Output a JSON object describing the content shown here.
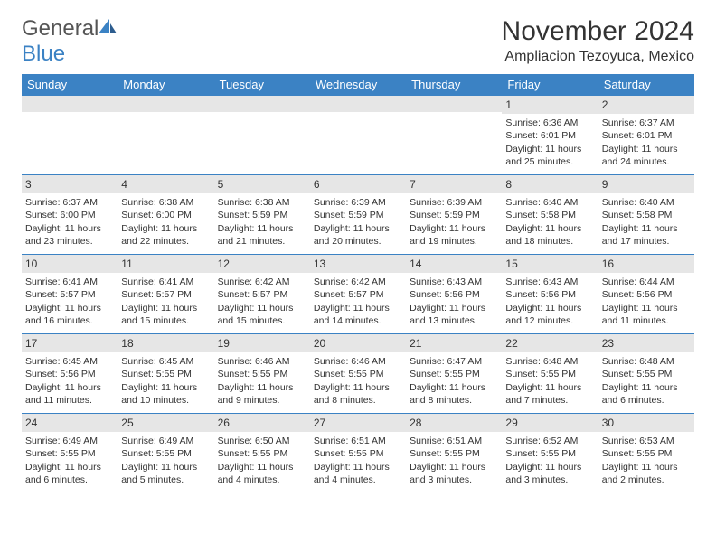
{
  "logo": {
    "general": "General",
    "blue": "Blue"
  },
  "title": "November 2024",
  "location": "Ampliacion Tezoyuca, Mexico",
  "colors": {
    "header_bg": "#3b82c4",
    "header_text": "#ffffff",
    "border": "#3b82c4",
    "daynum_bg": "#e6e6e6",
    "text": "#333333",
    "page_bg": "#ffffff"
  },
  "day_headers": [
    "Sunday",
    "Monday",
    "Tuesday",
    "Wednesday",
    "Thursday",
    "Friday",
    "Saturday"
  ],
  "weeks": [
    [
      {
        "day": "",
        "sunrise": "",
        "sunset": "",
        "daylight": ""
      },
      {
        "day": "",
        "sunrise": "",
        "sunset": "",
        "daylight": ""
      },
      {
        "day": "",
        "sunrise": "",
        "sunset": "",
        "daylight": ""
      },
      {
        "day": "",
        "sunrise": "",
        "sunset": "",
        "daylight": ""
      },
      {
        "day": "",
        "sunrise": "",
        "sunset": "",
        "daylight": ""
      },
      {
        "day": "1",
        "sunrise": "Sunrise: 6:36 AM",
        "sunset": "Sunset: 6:01 PM",
        "daylight": "Daylight: 11 hours and 25 minutes."
      },
      {
        "day": "2",
        "sunrise": "Sunrise: 6:37 AM",
        "sunset": "Sunset: 6:01 PM",
        "daylight": "Daylight: 11 hours and 24 minutes."
      }
    ],
    [
      {
        "day": "3",
        "sunrise": "Sunrise: 6:37 AM",
        "sunset": "Sunset: 6:00 PM",
        "daylight": "Daylight: 11 hours and 23 minutes."
      },
      {
        "day": "4",
        "sunrise": "Sunrise: 6:38 AM",
        "sunset": "Sunset: 6:00 PM",
        "daylight": "Daylight: 11 hours and 22 minutes."
      },
      {
        "day": "5",
        "sunrise": "Sunrise: 6:38 AM",
        "sunset": "Sunset: 5:59 PM",
        "daylight": "Daylight: 11 hours and 21 minutes."
      },
      {
        "day": "6",
        "sunrise": "Sunrise: 6:39 AM",
        "sunset": "Sunset: 5:59 PM",
        "daylight": "Daylight: 11 hours and 20 minutes."
      },
      {
        "day": "7",
        "sunrise": "Sunrise: 6:39 AM",
        "sunset": "Sunset: 5:59 PM",
        "daylight": "Daylight: 11 hours and 19 minutes."
      },
      {
        "day": "8",
        "sunrise": "Sunrise: 6:40 AM",
        "sunset": "Sunset: 5:58 PM",
        "daylight": "Daylight: 11 hours and 18 minutes."
      },
      {
        "day": "9",
        "sunrise": "Sunrise: 6:40 AM",
        "sunset": "Sunset: 5:58 PM",
        "daylight": "Daylight: 11 hours and 17 minutes."
      }
    ],
    [
      {
        "day": "10",
        "sunrise": "Sunrise: 6:41 AM",
        "sunset": "Sunset: 5:57 PM",
        "daylight": "Daylight: 11 hours and 16 minutes."
      },
      {
        "day": "11",
        "sunrise": "Sunrise: 6:41 AM",
        "sunset": "Sunset: 5:57 PM",
        "daylight": "Daylight: 11 hours and 15 minutes."
      },
      {
        "day": "12",
        "sunrise": "Sunrise: 6:42 AM",
        "sunset": "Sunset: 5:57 PM",
        "daylight": "Daylight: 11 hours and 15 minutes."
      },
      {
        "day": "13",
        "sunrise": "Sunrise: 6:42 AM",
        "sunset": "Sunset: 5:57 PM",
        "daylight": "Daylight: 11 hours and 14 minutes."
      },
      {
        "day": "14",
        "sunrise": "Sunrise: 6:43 AM",
        "sunset": "Sunset: 5:56 PM",
        "daylight": "Daylight: 11 hours and 13 minutes."
      },
      {
        "day": "15",
        "sunrise": "Sunrise: 6:43 AM",
        "sunset": "Sunset: 5:56 PM",
        "daylight": "Daylight: 11 hours and 12 minutes."
      },
      {
        "day": "16",
        "sunrise": "Sunrise: 6:44 AM",
        "sunset": "Sunset: 5:56 PM",
        "daylight": "Daylight: 11 hours and 11 minutes."
      }
    ],
    [
      {
        "day": "17",
        "sunrise": "Sunrise: 6:45 AM",
        "sunset": "Sunset: 5:56 PM",
        "daylight": "Daylight: 11 hours and 11 minutes."
      },
      {
        "day": "18",
        "sunrise": "Sunrise: 6:45 AM",
        "sunset": "Sunset: 5:55 PM",
        "daylight": "Daylight: 11 hours and 10 minutes."
      },
      {
        "day": "19",
        "sunrise": "Sunrise: 6:46 AM",
        "sunset": "Sunset: 5:55 PM",
        "daylight": "Daylight: 11 hours and 9 minutes."
      },
      {
        "day": "20",
        "sunrise": "Sunrise: 6:46 AM",
        "sunset": "Sunset: 5:55 PM",
        "daylight": "Daylight: 11 hours and 8 minutes."
      },
      {
        "day": "21",
        "sunrise": "Sunrise: 6:47 AM",
        "sunset": "Sunset: 5:55 PM",
        "daylight": "Daylight: 11 hours and 8 minutes."
      },
      {
        "day": "22",
        "sunrise": "Sunrise: 6:48 AM",
        "sunset": "Sunset: 5:55 PM",
        "daylight": "Daylight: 11 hours and 7 minutes."
      },
      {
        "day": "23",
        "sunrise": "Sunrise: 6:48 AM",
        "sunset": "Sunset: 5:55 PM",
        "daylight": "Daylight: 11 hours and 6 minutes."
      }
    ],
    [
      {
        "day": "24",
        "sunrise": "Sunrise: 6:49 AM",
        "sunset": "Sunset: 5:55 PM",
        "daylight": "Daylight: 11 hours and 6 minutes."
      },
      {
        "day": "25",
        "sunrise": "Sunrise: 6:49 AM",
        "sunset": "Sunset: 5:55 PM",
        "daylight": "Daylight: 11 hours and 5 minutes."
      },
      {
        "day": "26",
        "sunrise": "Sunrise: 6:50 AM",
        "sunset": "Sunset: 5:55 PM",
        "daylight": "Daylight: 11 hours and 4 minutes."
      },
      {
        "day": "27",
        "sunrise": "Sunrise: 6:51 AM",
        "sunset": "Sunset: 5:55 PM",
        "daylight": "Daylight: 11 hours and 4 minutes."
      },
      {
        "day": "28",
        "sunrise": "Sunrise: 6:51 AM",
        "sunset": "Sunset: 5:55 PM",
        "daylight": "Daylight: 11 hours and 3 minutes."
      },
      {
        "day": "29",
        "sunrise": "Sunrise: 6:52 AM",
        "sunset": "Sunset: 5:55 PM",
        "daylight": "Daylight: 11 hours and 3 minutes."
      },
      {
        "day": "30",
        "sunrise": "Sunrise: 6:53 AM",
        "sunset": "Sunset: 5:55 PM",
        "daylight": "Daylight: 11 hours and 2 minutes."
      }
    ]
  ]
}
